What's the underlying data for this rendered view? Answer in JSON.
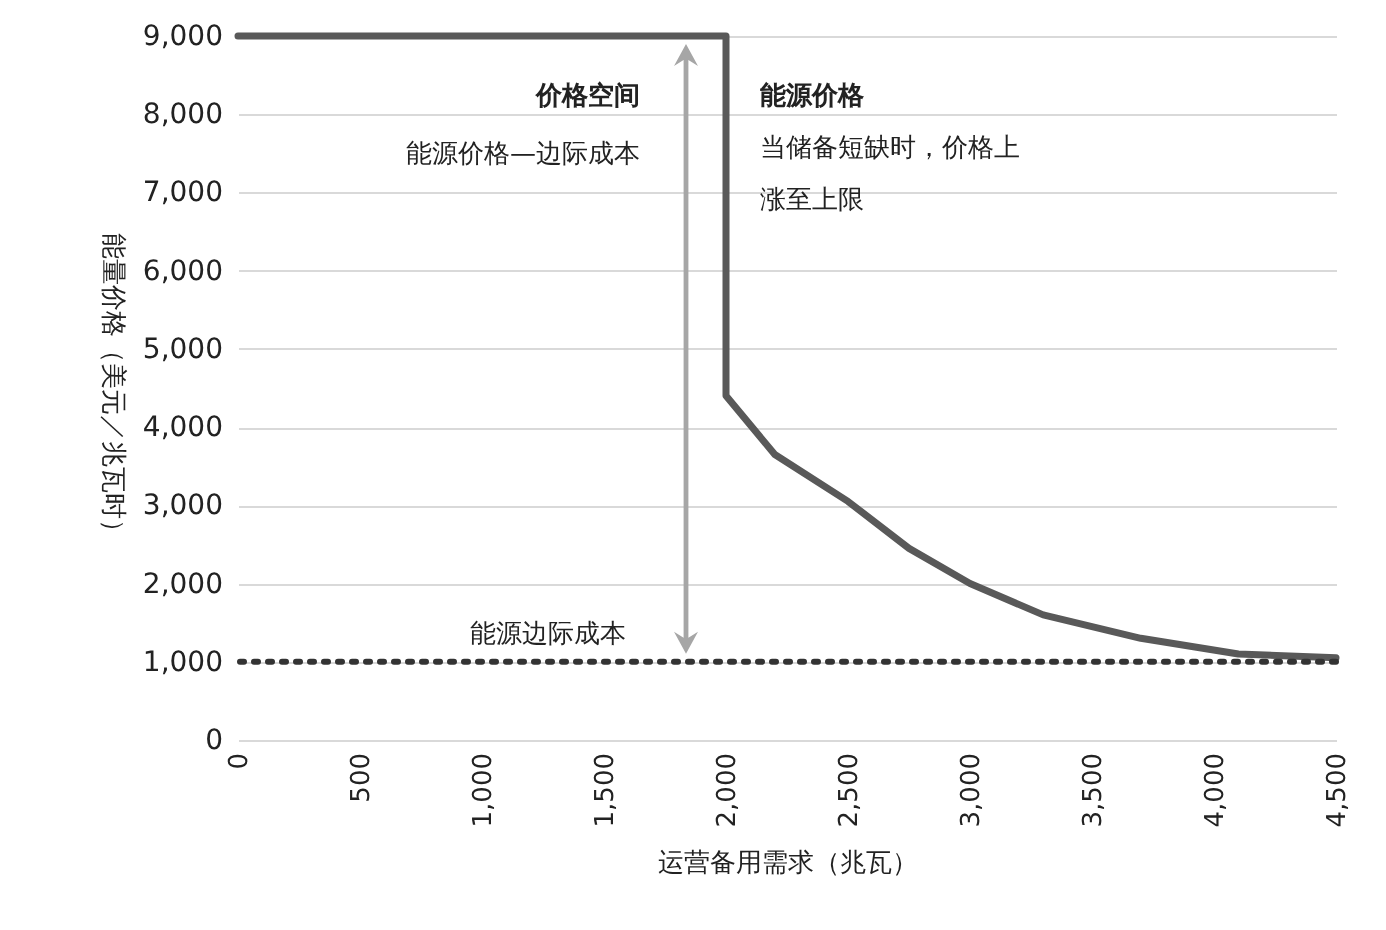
{
  "chart_data": {
    "type": "line",
    "xlabel": "运营备用需求（兆瓦）",
    "ylabel": "能量价格（美元／兆瓦时）",
    "x": [
      0,
      2000,
      2000,
      2200,
      2500,
      2750,
      3000,
      3300,
      3700,
      4100,
      4500
    ],
    "series": [
      {
        "color": "#595959",
        "values": [
          9000,
          9000,
          4400,
          3650,
          3050,
          2450,
          2000,
          1600,
          1300,
          1100,
          1050
        ]
      }
    ],
    "xlim": [
      0,
      4500
    ],
    "xticks": [
      0,
      500,
      {
        "value": 1000,
        "label": "1,000"
      },
      {
        "value": 1500,
        "label": "1,500"
      },
      {
        "value": 2000,
        "label": "2,000"
      },
      {
        "value": 2500,
        "label": "2,500"
      },
      {
        "value": 3000,
        "label": "3,000"
      },
      {
        "value": 3500,
        "label": "3,500"
      },
      {
        "value": 4000,
        "label": "4,000"
      },
      {
        "value": 4500,
        "label": "4,500"
      }
    ],
    "ylim": [
      0,
      9000
    ],
    "yticks": [
      0,
      {
        "value": 1000,
        "label": "1,000"
      },
      {
        "value": 2000,
        "label": "2,000"
      },
      {
        "value": 3000,
        "label": "3,000"
      },
      {
        "value": 4000,
        "label": "4,000"
      },
      {
        "value": 5000,
        "label": "5,000"
      },
      {
        "value": 6000,
        "label": "6,000"
      },
      {
        "value": 7000,
        "label": "7,000"
      },
      {
        "value": 8000,
        "label": "8,000"
      },
      {
        "value": 9000,
        "label": "9,000"
      }
    ],
    "ref_lines": [
      {
        "axis": "y",
        "value": 1000,
        "label": "能源边际成本",
        "color": "#333333",
        "line_style": "dotted"
      }
    ],
    "annotations": [
      "价格空间",
      "能源价格—边际成本",
      "能源价格",
      "当储备短缺时，价格上涨至上限"
    ],
    "grid": "y",
    "marker": "none",
    "line_style": "solid"
  }
}
